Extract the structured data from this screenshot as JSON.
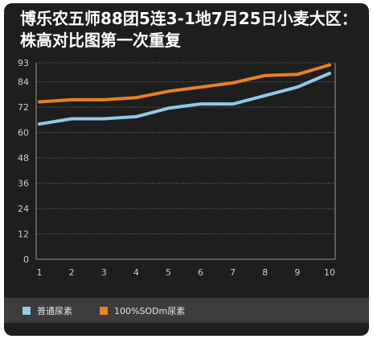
{
  "chart_data": {
    "type": "line",
    "title": "博乐农五师88团5连3-1地7月25日小麦大区：株高对比图第一次重复",
    "categories": [
      "1",
      "2",
      "3",
      "4",
      "5",
      "6",
      "7",
      "8",
      "9",
      "10"
    ],
    "y_ticks": [
      0,
      12,
      24,
      36,
      48,
      60,
      72,
      84,
      93
    ],
    "ylim": [
      0,
      93
    ],
    "grid": true,
    "legend_position": "bottom",
    "series": [
      {
        "name": "普通尿素",
        "color": "#8fcbe6",
        "values": [
          64,
          66.5,
          66.5,
          67.5,
          71.5,
          73.5,
          73.5,
          77.5,
          81.5,
          88
        ]
      },
      {
        "name": "100%SODm尿素",
        "color": "#e8821e",
        "values": [
          74.5,
          75.5,
          75.5,
          76.5,
          79.5,
          81.5,
          83.5,
          87,
          87.5,
          92
        ]
      }
    ]
  }
}
